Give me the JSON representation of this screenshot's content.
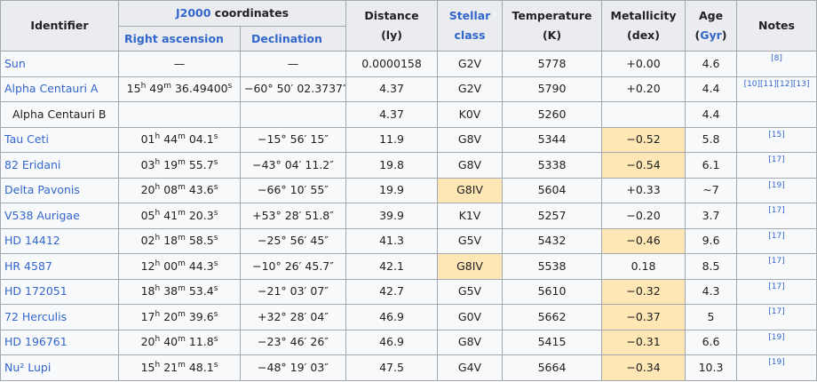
{
  "headers": {
    "identifier": "Identifier",
    "coords_link": "J2000",
    "coords_rest": " coordinates",
    "ra": "Right ascension",
    "dec": "Declination",
    "distance_line1": "Distance",
    "distance_line2": "(ly)",
    "stellar_line1": "Stellar",
    "stellar_line2": "class",
    "temp_line1": "Temperature",
    "temp_line2": "(K)",
    "metal_line1": "Metallicity",
    "metal_line2": "(dex)",
    "age_line1": "Age",
    "age_open": "(",
    "age_unit": "Gyr",
    "age_close": ")",
    "notes": "Notes"
  },
  "rows": [
    {
      "id": "Sun",
      "link": true,
      "ra": null,
      "ra_text": "—",
      "dec": "—",
      "dist": "0.0000158",
      "cls": "G2V",
      "cls_hl": false,
      "temp": "5778",
      "metal": "+0.00",
      "metal_hl": false,
      "age": "4.6",
      "notes": "[8]"
    },
    {
      "id": "Alpha Centauri A",
      "link": true,
      "ra": {
        "h": "15",
        "m": "49",
        "s": "36.49400"
      },
      "dec": "−60° 50′ 02.3737″",
      "dist": "4.37",
      "cls": "G2V",
      "cls_hl": false,
      "temp": "5790",
      "metal": "+0.20",
      "metal_hl": false,
      "age": "4.4",
      "notes": "[10][11][12][13]"
    },
    {
      "id": "Alpha Centauri B",
      "link": false,
      "ra": null,
      "ra_text": "",
      "dec": "",
      "dist": "4.37",
      "cls": "K0V",
      "cls_hl": false,
      "temp": "5260",
      "metal": "",
      "metal_hl": false,
      "age": "4.4",
      "notes": ""
    },
    {
      "id": "Tau Ceti",
      "link": true,
      "ra": {
        "h": "01",
        "m": "44",
        "s": "04.1"
      },
      "dec": "−15° 56′ 15″",
      "dist": "11.9",
      "cls": "G8V",
      "cls_hl": false,
      "temp": "5344",
      "metal": "−0.52",
      "metal_hl": true,
      "age": "5.8",
      "notes": "[15]"
    },
    {
      "id": "82 Eridani",
      "link": true,
      "ra": {
        "h": "03",
        "m": "19",
        "s": "55.7"
      },
      "dec": "−43° 04′ 11.2″",
      "dist": "19.8",
      "cls": "G8V",
      "cls_hl": false,
      "temp": "5338",
      "metal": "−0.54",
      "metal_hl": true,
      "age": "6.1",
      "notes": "[17]"
    },
    {
      "id": "Delta Pavonis",
      "link": true,
      "ra": {
        "h": "20",
        "m": "08",
        "s": "43.6"
      },
      "dec": "−66° 10′ 55″",
      "dist": "19.9",
      "cls": "G8IV",
      "cls_hl": true,
      "temp": "5604",
      "metal": "+0.33",
      "metal_hl": false,
      "age": "~7",
      "notes": "[19]"
    },
    {
      "id": "V538 Aurigae",
      "link": true,
      "ra": {
        "h": "05",
        "m": "41",
        "s": "20.3"
      },
      "dec": "+53° 28′ 51.8″",
      "dist": "39.9",
      "cls": "K1V",
      "cls_hl": false,
      "temp": "5257",
      "metal": "−0.20",
      "metal_hl": false,
      "age": "3.7",
      "notes": "[17]"
    },
    {
      "id": "HD 14412",
      "link": true,
      "ra": {
        "h": "02",
        "m": "18",
        "s": "58.5"
      },
      "dec": "−25° 56′ 45″",
      "dist": "41.3",
      "cls": "G5V",
      "cls_hl": false,
      "temp": "5432",
      "metal": "−0.46",
      "metal_hl": true,
      "age": "9.6",
      "notes": "[17]"
    },
    {
      "id": "HR 4587",
      "link": true,
      "ra": {
        "h": "12",
        "m": "00",
        "s": "44.3"
      },
      "dec": "−10° 26′ 45.7″",
      "dist": "42.1",
      "cls": "G8IV",
      "cls_hl": true,
      "temp": "5538",
      "metal": "0.18",
      "metal_hl": false,
      "age": "8.5",
      "notes": "[17]"
    },
    {
      "id": "HD 172051",
      "link": true,
      "ra": {
        "h": "18",
        "m": "38",
        "s": "53.4"
      },
      "dec": "−21° 03′ 07″",
      "dist": "42.7",
      "cls": "G5V",
      "cls_hl": false,
      "temp": "5610",
      "metal": "−0.32",
      "metal_hl": true,
      "age": "4.3",
      "notes": "[17]"
    },
    {
      "id": "72 Herculis",
      "link": true,
      "ra": {
        "h": "17",
        "m": "20",
        "s": "39.6"
      },
      "dec": "+32° 28′ 04″",
      "dist": "46.9",
      "cls": "G0V",
      "cls_hl": false,
      "temp": "5662",
      "metal": "−0.37",
      "metal_hl": true,
      "age": "5",
      "notes": "[17]"
    },
    {
      "id": "HD 196761",
      "link": true,
      "ra": {
        "h": "20",
        "m": "40",
        "s": "11.8"
      },
      "dec": "−23° 46′ 26″",
      "dist": "46.9",
      "cls": "G8V",
      "cls_hl": false,
      "temp": "5415",
      "metal": "−0.31",
      "metal_hl": true,
      "age": "6.6",
      "notes": "[19]"
    },
    {
      "id": "Nu² Lupi",
      "link": true,
      "ra": {
        "h": "15",
        "m": "21",
        "s": "48.1"
      },
      "dec": "−48° 19′ 03″",
      "dist": "47.5",
      "cls": "G4V",
      "cls_hl": false,
      "temp": "5664",
      "metal": "−0.34",
      "metal_hl": true,
      "age": "10.3",
      "notes": "[19]"
    }
  ],
  "colors": {
    "link": "#3366cc",
    "highlight": "#fee7b5",
    "header_bg": "#eaecf0",
    "cell_bg": "#f8f9fa",
    "border": "#a2a9b1"
  }
}
